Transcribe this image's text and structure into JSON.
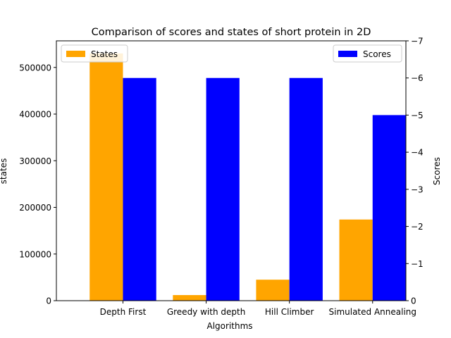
{
  "chart_data": {
    "type": "bar",
    "title": "Comparison of scores and states of short protein in 2D",
    "xlabel": "Algorithms",
    "ylabel_left": "states",
    "ylabel_right": "Scores",
    "categories": [
      "Depth First",
      "Greedy with depth",
      "Hill Climber",
      "Simulated Annealing"
    ],
    "series": [
      {
        "name": "States",
        "axis": "left",
        "color": "#ffa500",
        "values": [
          530000,
          12000,
          45000,
          174000
        ]
      },
      {
        "name": "Scores",
        "axis": "right",
        "color": "#0000ff",
        "values": [
          -6,
          -6,
          -6,
          -5
        ]
      }
    ],
    "left_axis": {
      "ylim": [
        0,
        557000
      ],
      "ticks": [
        0,
        100000,
        200000,
        300000,
        400000,
        500000
      ]
    },
    "right_axis": {
      "ylim": [
        0,
        -7
      ],
      "ticks": [
        0,
        -1,
        -2,
        -3,
        -4,
        -5,
        -6,
        -7
      ]
    },
    "legend_left": {
      "placement": "top-left",
      "label": "States"
    },
    "legend_right": {
      "placement": "top-right",
      "label": "Scores"
    },
    "grid": false
  }
}
